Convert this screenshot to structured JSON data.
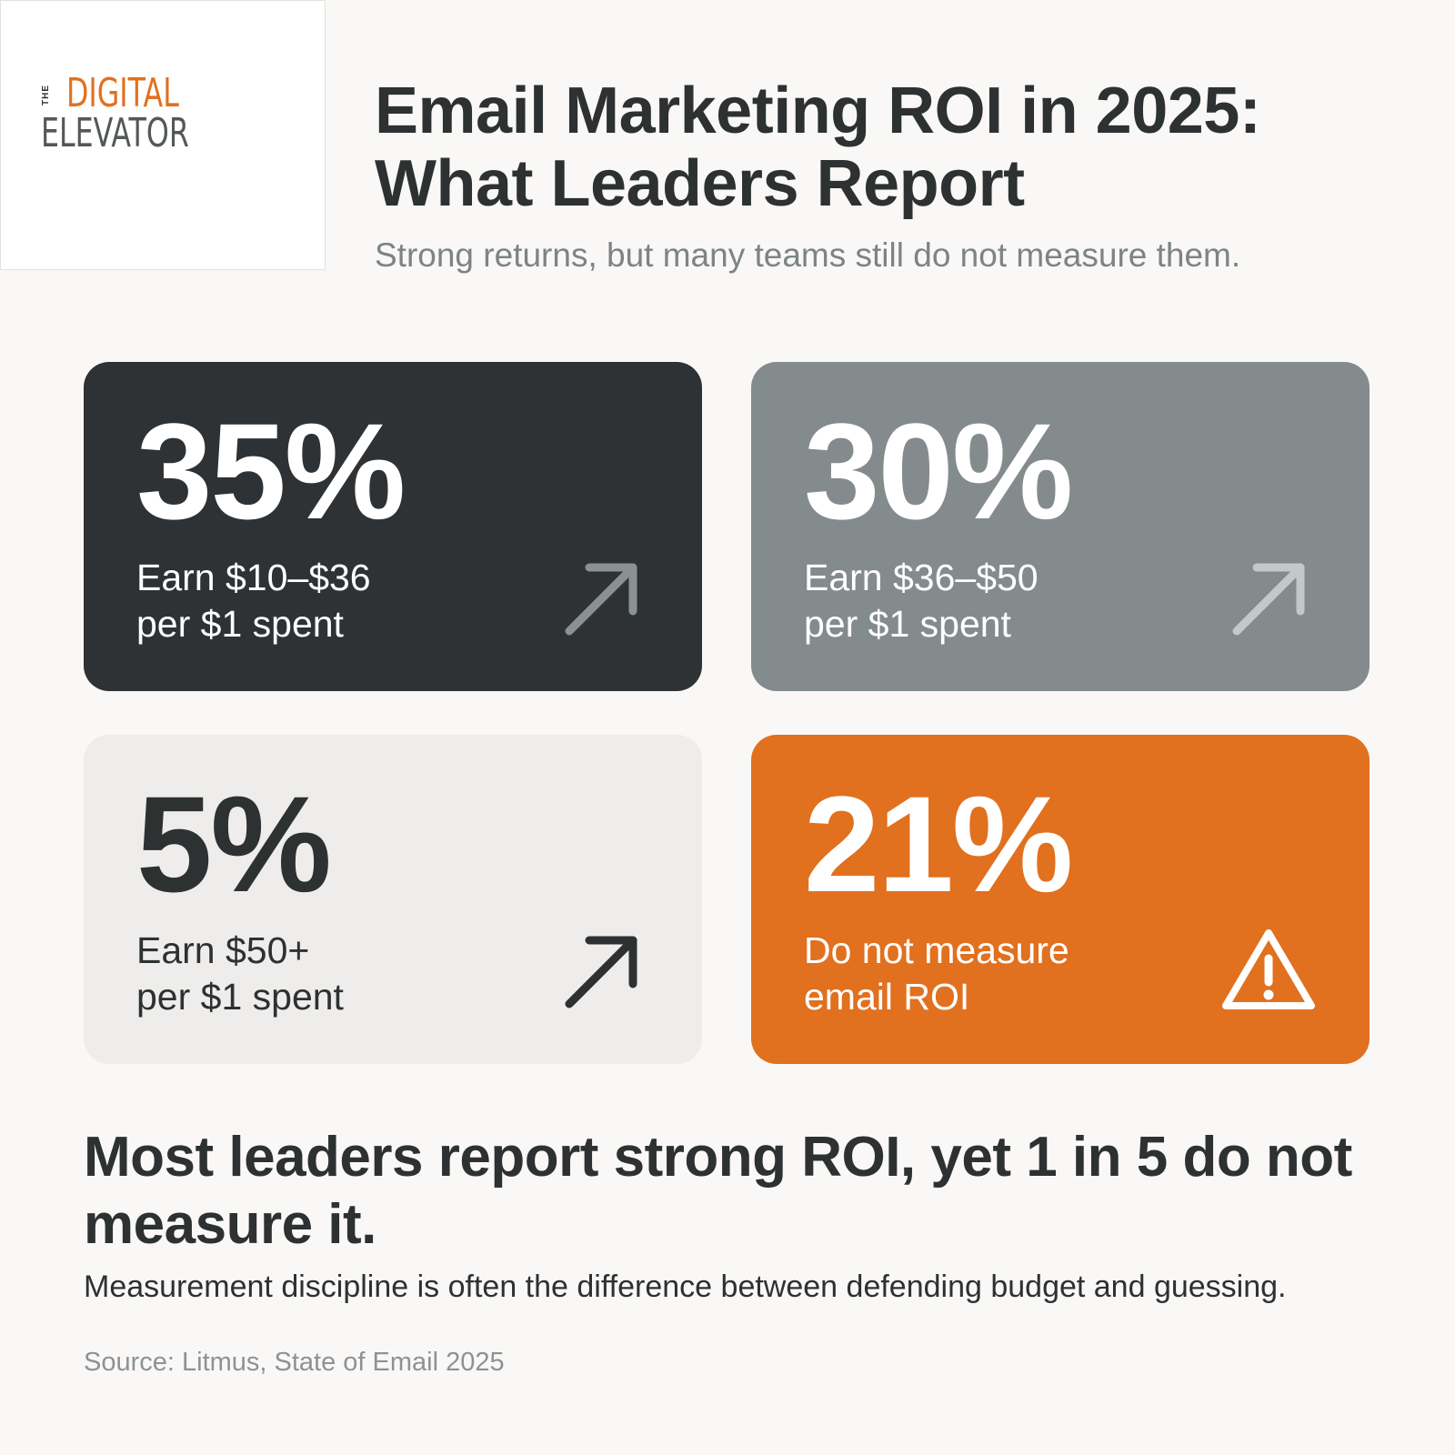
{
  "logo": {
    "the": "THE",
    "line1": "DIGITAL",
    "line2": "ELEVATOR"
  },
  "header": {
    "title": "Email Marketing ROI in 2025: What Leaders Report",
    "subtitle": "Strong returns, but many teams still do not measure them."
  },
  "cards": [
    {
      "stat": "35%",
      "desc_line1": "Earn $10–$36",
      "desc_line2": "per $1 spent",
      "icon": "arrow-up-right-icon",
      "bg_color": "#2e3234"
    },
    {
      "stat": "30%",
      "desc_line1": "Earn $36–$50",
      "desc_line2": "per $1 spent",
      "icon": "arrow-up-right-icon",
      "bg_color": "#838b8d"
    },
    {
      "stat": "5%",
      "desc_line1": "Earn $50+",
      "desc_line2": "per $1 spent",
      "icon": "arrow-up-right-icon",
      "bg_color": "#eeedec"
    },
    {
      "stat": "21%",
      "desc_line1": "Do not measure",
      "desc_line2": "email ROI",
      "icon": "warning-icon",
      "bg_color": "#e1701f"
    }
  ],
  "footer": {
    "headline": "Most leaders report strong ROI, yet 1 in 5 do not measure it.",
    "body": "Measurement discipline is often the difference between defending budget and guessing.",
    "source": "Source: Litmus, State of Email 2025"
  },
  "colors": {
    "accent": "#e1701f",
    "dark": "#2e3234",
    "gray": "#838b8d",
    "light": "#eeedec",
    "background": "#f9f8f6"
  }
}
